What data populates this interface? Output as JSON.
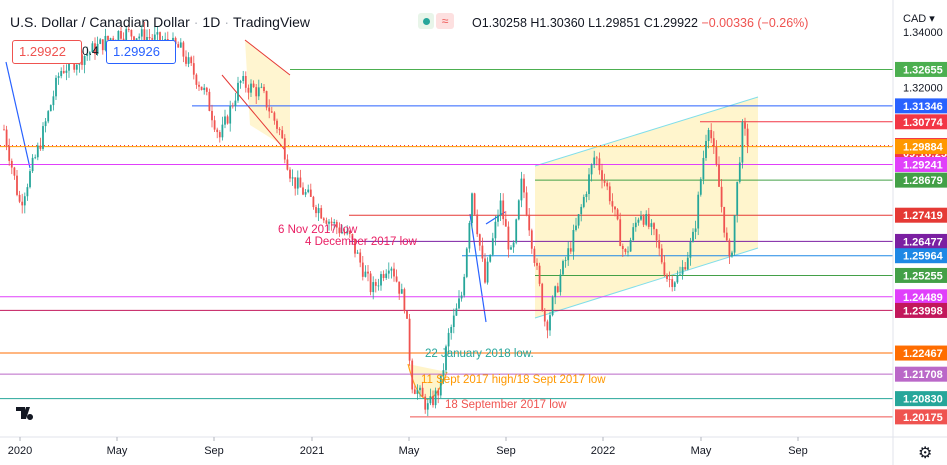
{
  "header": {
    "symbol": "U.S. Dollar / Canadian Dollar",
    "interval": "1D",
    "source": "TradingView",
    "ohlc": {
      "open": "O1.30258",
      "high": "H1.30360",
      "low": "L1.29851",
      "close": "C1.29922",
      "change": "−0.00336 (−0.26%)"
    },
    "bid": "1.29922",
    "spread": "0.4",
    "ask": "1.29926",
    "currency": "CAD"
  },
  "chart_data": {
    "type": "candlestick",
    "x_ticks": [
      "2020",
      "May",
      "Sep",
      "2021",
      "May",
      "Sep",
      "2022",
      "May",
      "Sep"
    ],
    "price_labels": [
      {
        "value": 1.34,
        "text": "1.34000",
        "kind": "axis"
      },
      {
        "value": 1.32655,
        "text": "1.32655",
        "kind": "level",
        "color": "#4caf50"
      },
      {
        "value": 1.32,
        "text": "1.32000",
        "kind": "axis"
      },
      {
        "value": 1.31346,
        "text": "1.31346",
        "kind": "level",
        "color": "#2962ff"
      },
      {
        "value": 1.30774,
        "text": "1.30774",
        "kind": "level",
        "color": "#f23645"
      },
      {
        "value": 1.29922,
        "text": "1.29922",
        "kind": "price",
        "color": "#f23645"
      },
      {
        "value": 1.2966,
        "text": "09:18:25",
        "kind": "countdown",
        "color": "#f23645"
      },
      {
        "value": 1.29884,
        "text": "1.29884",
        "kind": "level",
        "color": "#ff9800"
      },
      {
        "value": 1.29241,
        "text": "1.29241",
        "kind": "level",
        "color": "#e040fb"
      },
      {
        "value": 1.28679,
        "text": "1.28679",
        "kind": "level",
        "color": "#43a047"
      },
      {
        "value": 1.27419,
        "text": "1.27419",
        "kind": "level",
        "color": "#e53935"
      },
      {
        "value": 1.26477,
        "text": "1.26477",
        "kind": "level",
        "color": "#7b1fa2"
      },
      {
        "value": 1.25964,
        "text": "1.25964",
        "kind": "level",
        "color": "#1e88e5"
      },
      {
        "value": 1.25255,
        "text": "1.25255",
        "kind": "level",
        "color": "#43a047"
      },
      {
        "value": 1.24489,
        "text": "1.24489",
        "kind": "level",
        "color": "#e040fb"
      },
      {
        "value": 1.23998,
        "text": "1.23998",
        "kind": "level",
        "color": "#c2185b"
      },
      {
        "value": 1.22467,
        "text": "1.22467",
        "kind": "level",
        "color": "#ff6d00"
      },
      {
        "value": 1.21708,
        "text": "1.21708",
        "kind": "level",
        "color": "#ba68c8"
      },
      {
        "value": 1.2083,
        "text": "1.20830",
        "kind": "level",
        "color": "#26a69a"
      },
      {
        "value": 1.20175,
        "text": "1.20175",
        "kind": "level",
        "color": "#ef5350"
      }
    ],
    "annotations": [
      {
        "text": "6 Nov 2017 low",
        "color": "#e91e63",
        "level": 1.2647
      },
      {
        "text": "4 December 2017 low",
        "color": "#e91e63",
        "level": 1.26
      },
      {
        "text": "22 January 2018 low.",
        "color": "#26a69a",
        "level": 1.225
      },
      {
        "text": "11 Sept 2017 high/18 Sept 2017 low",
        "color": "#ff9800",
        "level": 1.217
      },
      {
        "text": "18 September 2017 low",
        "color": "#ef5350",
        "level": 1.2083
      }
    ],
    "colors": {
      "up": "#26a69a",
      "down": "#ef5350",
      "channel_fill": "#fff3c4",
      "channel_line": "#80deea"
    }
  }
}
